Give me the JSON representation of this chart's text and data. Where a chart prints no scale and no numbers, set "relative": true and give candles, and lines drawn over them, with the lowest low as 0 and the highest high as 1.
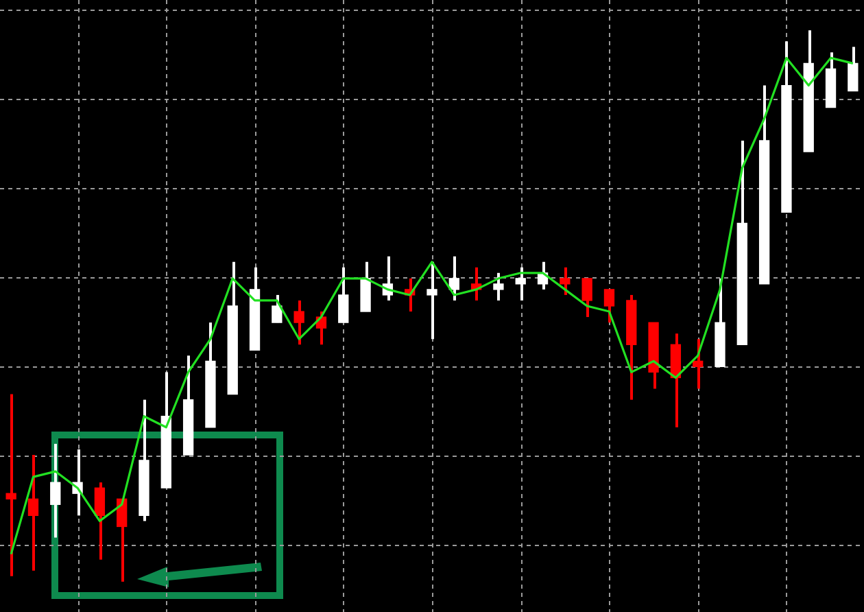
{
  "chart_data": {
    "type": "candlestick",
    "relative": true,
    "grid": true,
    "categories": [
      null,
      null,
      null,
      null,
      null,
      null,
      null,
      null,
      null,
      null,
      null,
      null,
      null,
      null,
      null,
      null,
      null,
      null,
      null,
      null,
      null,
      null,
      null,
      null,
      null,
      null,
      null,
      null,
      null,
      null,
      null,
      null,
      null,
      null,
      null,
      null,
      null,
      null,
      null
    ],
    "ohlc": [
      [
        0.16,
        0.34,
        0.01,
        0.15
      ],
      [
        0.15,
        0.23,
        0.02,
        0.12
      ],
      [
        0.14,
        0.25,
        0.08,
        0.18
      ],
      [
        0.16,
        0.24,
        0.12,
        0.18
      ],
      [
        0.17,
        0.18,
        0.04,
        0.12
      ],
      [
        0.15,
        0.15,
        0,
        0.1
      ],
      [
        0.12,
        0.33,
        0.11,
        0.22
      ],
      [
        0.17,
        0.38,
        0.17,
        0.3
      ],
      [
        0.23,
        0.41,
        0.23,
        0.33
      ],
      [
        0.28,
        0.47,
        0.28,
        0.4
      ],
      [
        0.34,
        0.58,
        0.34,
        0.5
      ],
      [
        0.42,
        0.57,
        0.42,
        0.53
      ],
      [
        0.47,
        0.52,
        0.47,
        0.5
      ],
      [
        0.49,
        0.51,
        0.43,
        0.47
      ],
      [
        0.48,
        0.49,
        0.43,
        0.46
      ],
      [
        0.47,
        0.57,
        0.47,
        0.52
      ],
      [
        0.49,
        0.58,
        0.49,
        0.55
      ],
      [
        0.52,
        0.59,
        0.51,
        0.54
      ],
      [
        0.53,
        0.55,
        0.49,
        0.52
      ],
      [
        0.52,
        0.58,
        0.44,
        0.53
      ],
      [
        0.53,
        0.59,
        0.51,
        0.55
      ],
      [
        0.54,
        0.57,
        0.51,
        0.53
      ],
      [
        0.53,
        0.56,
        0.51,
        0.54
      ],
      [
        0.54,
        0.57,
        0.51,
        0.55
      ],
      [
        0.54,
        0.58,
        0.53,
        0.56
      ],
      [
        0.55,
        0.57,
        0.52,
        0.54
      ],
      [
        0.55,
        0.55,
        0.48,
        0.51
      ],
      [
        0.53,
        0.53,
        0.47,
        0.5
      ],
      [
        0.51,
        0.52,
        0.33,
        0.43
      ],
      [
        0.47,
        0.47,
        0.35,
        0.38
      ],
      [
        0.43,
        0.45,
        0.28,
        0.37
      ],
      [
        0.4,
        0.44,
        0.35,
        0.39
      ],
      [
        0.39,
        0.55,
        0.39,
        0.47
      ],
      [
        0.43,
        0.8,
        0.43,
        0.65
      ],
      [
        0.54,
        0.9,
        0.54,
        0.8
      ],
      [
        0.67,
        0.98,
        0.67,
        0.9
      ],
      [
        0.78,
        1,
        0.78,
        0.94
      ],
      [
        0.86,
        0.96,
        0.86,
        0.93
      ],
      [
        0.89,
        0.97,
        0.89,
        0.94
      ]
    ],
    "colors": [
      "#ff0000",
      "#ff0000",
      "#ffffff",
      "#ffffff",
      "#ff0000",
      "#ff0000",
      "#ffffff",
      "#ffffff",
      "#ffffff",
      "#ffffff",
      "#ffffff",
      "#ffffff",
      "#ffffff",
      "#ff0000",
      "#ff0000",
      "#ffffff",
      "#ffffff",
      "#ffffff",
      "#ff0000",
      "#ffffff",
      "#ffffff",
      "#ff0000",
      "#ffffff",
      "#ffffff",
      "#ffffff",
      "#ff0000",
      "#ff0000",
      "#ff0000",
      "#ff0000",
      "#ff0000",
      "#ff0000",
      "#ff0000",
      "#ffffff",
      "#ffffff",
      "#ffffff",
      "#ffffff",
      "#ffffff",
      "#ffffff",
      "#ffffff"
    ],
    "series": [
      {
        "type": "line",
        "color": "#22e022",
        "values": [
          0.05,
          0.19,
          0.2,
          0.17,
          0.11,
          0.14,
          0.3,
          0.28,
          0.38,
          0.44,
          0.55,
          0.51,
          0.51,
          0.44,
          0.48,
          0.55,
          0.55,
          0.53,
          0.52,
          0.58,
          0.52,
          0.53,
          0.55,
          0.56,
          0.56,
          0.53,
          0.5,
          0.49,
          0.38,
          0.4,
          0.37,
          0.41,
          0.53,
          0.75,
          0.84,
          0.95,
          0.9,
          0.95,
          0.94
        ]
      }
    ]
  }
}
